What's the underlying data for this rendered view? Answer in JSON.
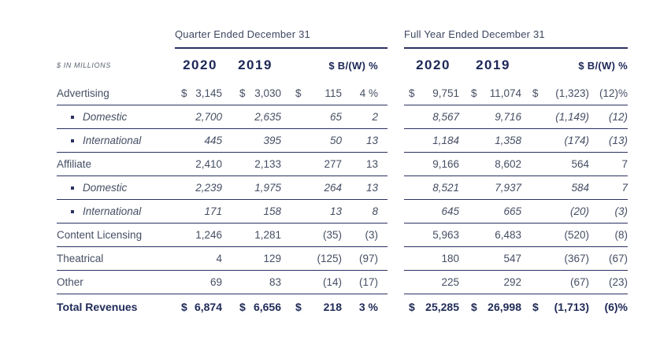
{
  "meta": {
    "units_label": "$ IN MILLIONS"
  },
  "groups": {
    "quarter": {
      "title": "Quarter Ended December 31"
    },
    "full_year": {
      "title": "Full Year Ended December 31"
    }
  },
  "columns": {
    "y2020": "2020",
    "y2019": "2019",
    "bw": "$ B/(W) %"
  },
  "colors": {
    "navy": "#1d2757",
    "line": "#2b3262",
    "body": "#454e63"
  },
  "rows": [
    {
      "label": "Advertising",
      "indent": false,
      "bold": false,
      "q2020": {
        "sign": "$",
        "value": "3,145"
      },
      "q2019": {
        "sign": "$",
        "value": "3,030"
      },
      "qbw": {
        "sign": "$",
        "value": "115"
      },
      "qpct": "4 %",
      "f2020": {
        "sign": "$",
        "value": "9,751"
      },
      "f2019": {
        "sign": "$",
        "value": "11,074"
      },
      "fbw": {
        "sign": "$",
        "value": "(1,323)"
      },
      "fpct": "(12)%"
    },
    {
      "label": "Domestic",
      "indent": true,
      "bold": false,
      "q2020": {
        "sign": "",
        "value": "2,700"
      },
      "q2019": {
        "sign": "",
        "value": "2,635"
      },
      "qbw": {
        "sign": "",
        "value": "65"
      },
      "qpct": "2",
      "f2020": {
        "sign": "",
        "value": "8,567"
      },
      "f2019": {
        "sign": "",
        "value": "9,716"
      },
      "fbw": {
        "sign": "",
        "value": "(1,149)"
      },
      "fpct": "(12)"
    },
    {
      "label": "International",
      "indent": true,
      "bold": false,
      "q2020": {
        "sign": "",
        "value": "445"
      },
      "q2019": {
        "sign": "",
        "value": "395"
      },
      "qbw": {
        "sign": "",
        "value": "50"
      },
      "qpct": "13",
      "f2020": {
        "sign": "",
        "value": "1,184"
      },
      "f2019": {
        "sign": "",
        "value": "1,358"
      },
      "fbw": {
        "sign": "",
        "value": "(174)"
      },
      "fpct": "(13)"
    },
    {
      "label": "Affiliate",
      "indent": false,
      "bold": false,
      "q2020": {
        "sign": "",
        "value": "2,410"
      },
      "q2019": {
        "sign": "",
        "value": "2,133"
      },
      "qbw": {
        "sign": "",
        "value": "277"
      },
      "qpct": "13",
      "f2020": {
        "sign": "",
        "value": "9,166"
      },
      "f2019": {
        "sign": "",
        "value": "8,602"
      },
      "fbw": {
        "sign": "",
        "value": "564"
      },
      "fpct": "7"
    },
    {
      "label": "Domestic",
      "indent": true,
      "bold": false,
      "q2020": {
        "sign": "",
        "value": "2,239"
      },
      "q2019": {
        "sign": "",
        "value": "1,975"
      },
      "qbw": {
        "sign": "",
        "value": "264"
      },
      "qpct": "13",
      "f2020": {
        "sign": "",
        "value": "8,521"
      },
      "f2019": {
        "sign": "",
        "value": "7,937"
      },
      "fbw": {
        "sign": "",
        "value": "584"
      },
      "fpct": "7"
    },
    {
      "label": "International",
      "indent": true,
      "bold": false,
      "q2020": {
        "sign": "",
        "value": "171"
      },
      "q2019": {
        "sign": "",
        "value": "158"
      },
      "qbw": {
        "sign": "",
        "value": "13"
      },
      "qpct": "8",
      "f2020": {
        "sign": "",
        "value": "645"
      },
      "f2019": {
        "sign": "",
        "value": "665"
      },
      "fbw": {
        "sign": "",
        "value": "(20)"
      },
      "fpct": "(3)"
    },
    {
      "label": "Content Licensing",
      "indent": false,
      "bold": false,
      "q2020": {
        "sign": "",
        "value": "1,246"
      },
      "q2019": {
        "sign": "",
        "value": "1,281"
      },
      "qbw": {
        "sign": "",
        "value": "(35)"
      },
      "qpct": "(3)",
      "f2020": {
        "sign": "",
        "value": "5,963"
      },
      "f2019": {
        "sign": "",
        "value": "6,483"
      },
      "fbw": {
        "sign": "",
        "value": "(520)"
      },
      "fpct": "(8)"
    },
    {
      "label": "Theatrical",
      "indent": false,
      "bold": false,
      "q2020": {
        "sign": "",
        "value": "4"
      },
      "q2019": {
        "sign": "",
        "value": "129"
      },
      "qbw": {
        "sign": "",
        "value": "(125)"
      },
      "qpct": "(97)",
      "f2020": {
        "sign": "",
        "value": "180"
      },
      "f2019": {
        "sign": "",
        "value": "547"
      },
      "fbw": {
        "sign": "",
        "value": "(367)"
      },
      "fpct": "(67)"
    },
    {
      "label": "Other",
      "indent": false,
      "bold": false,
      "q2020": {
        "sign": "",
        "value": "69"
      },
      "q2019": {
        "sign": "",
        "value": "83"
      },
      "qbw": {
        "sign": "",
        "value": "(14)"
      },
      "qpct": "(17)",
      "f2020": {
        "sign": "",
        "value": "225"
      },
      "f2019": {
        "sign": "",
        "value": "292"
      },
      "fbw": {
        "sign": "",
        "value": "(67)"
      },
      "fpct": "(23)"
    },
    {
      "label": "Total Revenues",
      "indent": false,
      "bold": true,
      "q2020": {
        "sign": "$",
        "value": "6,874"
      },
      "q2019": {
        "sign": "$",
        "value": "6,656"
      },
      "qbw": {
        "sign": "$",
        "value": "218"
      },
      "qpct": "3 %",
      "f2020": {
        "sign": "$",
        "value": "25,285"
      },
      "f2019": {
        "sign": "$",
        "value": "26,998"
      },
      "fbw": {
        "sign": "$",
        "value": "(1,713)"
      },
      "fpct": "(6)%"
    }
  ]
}
